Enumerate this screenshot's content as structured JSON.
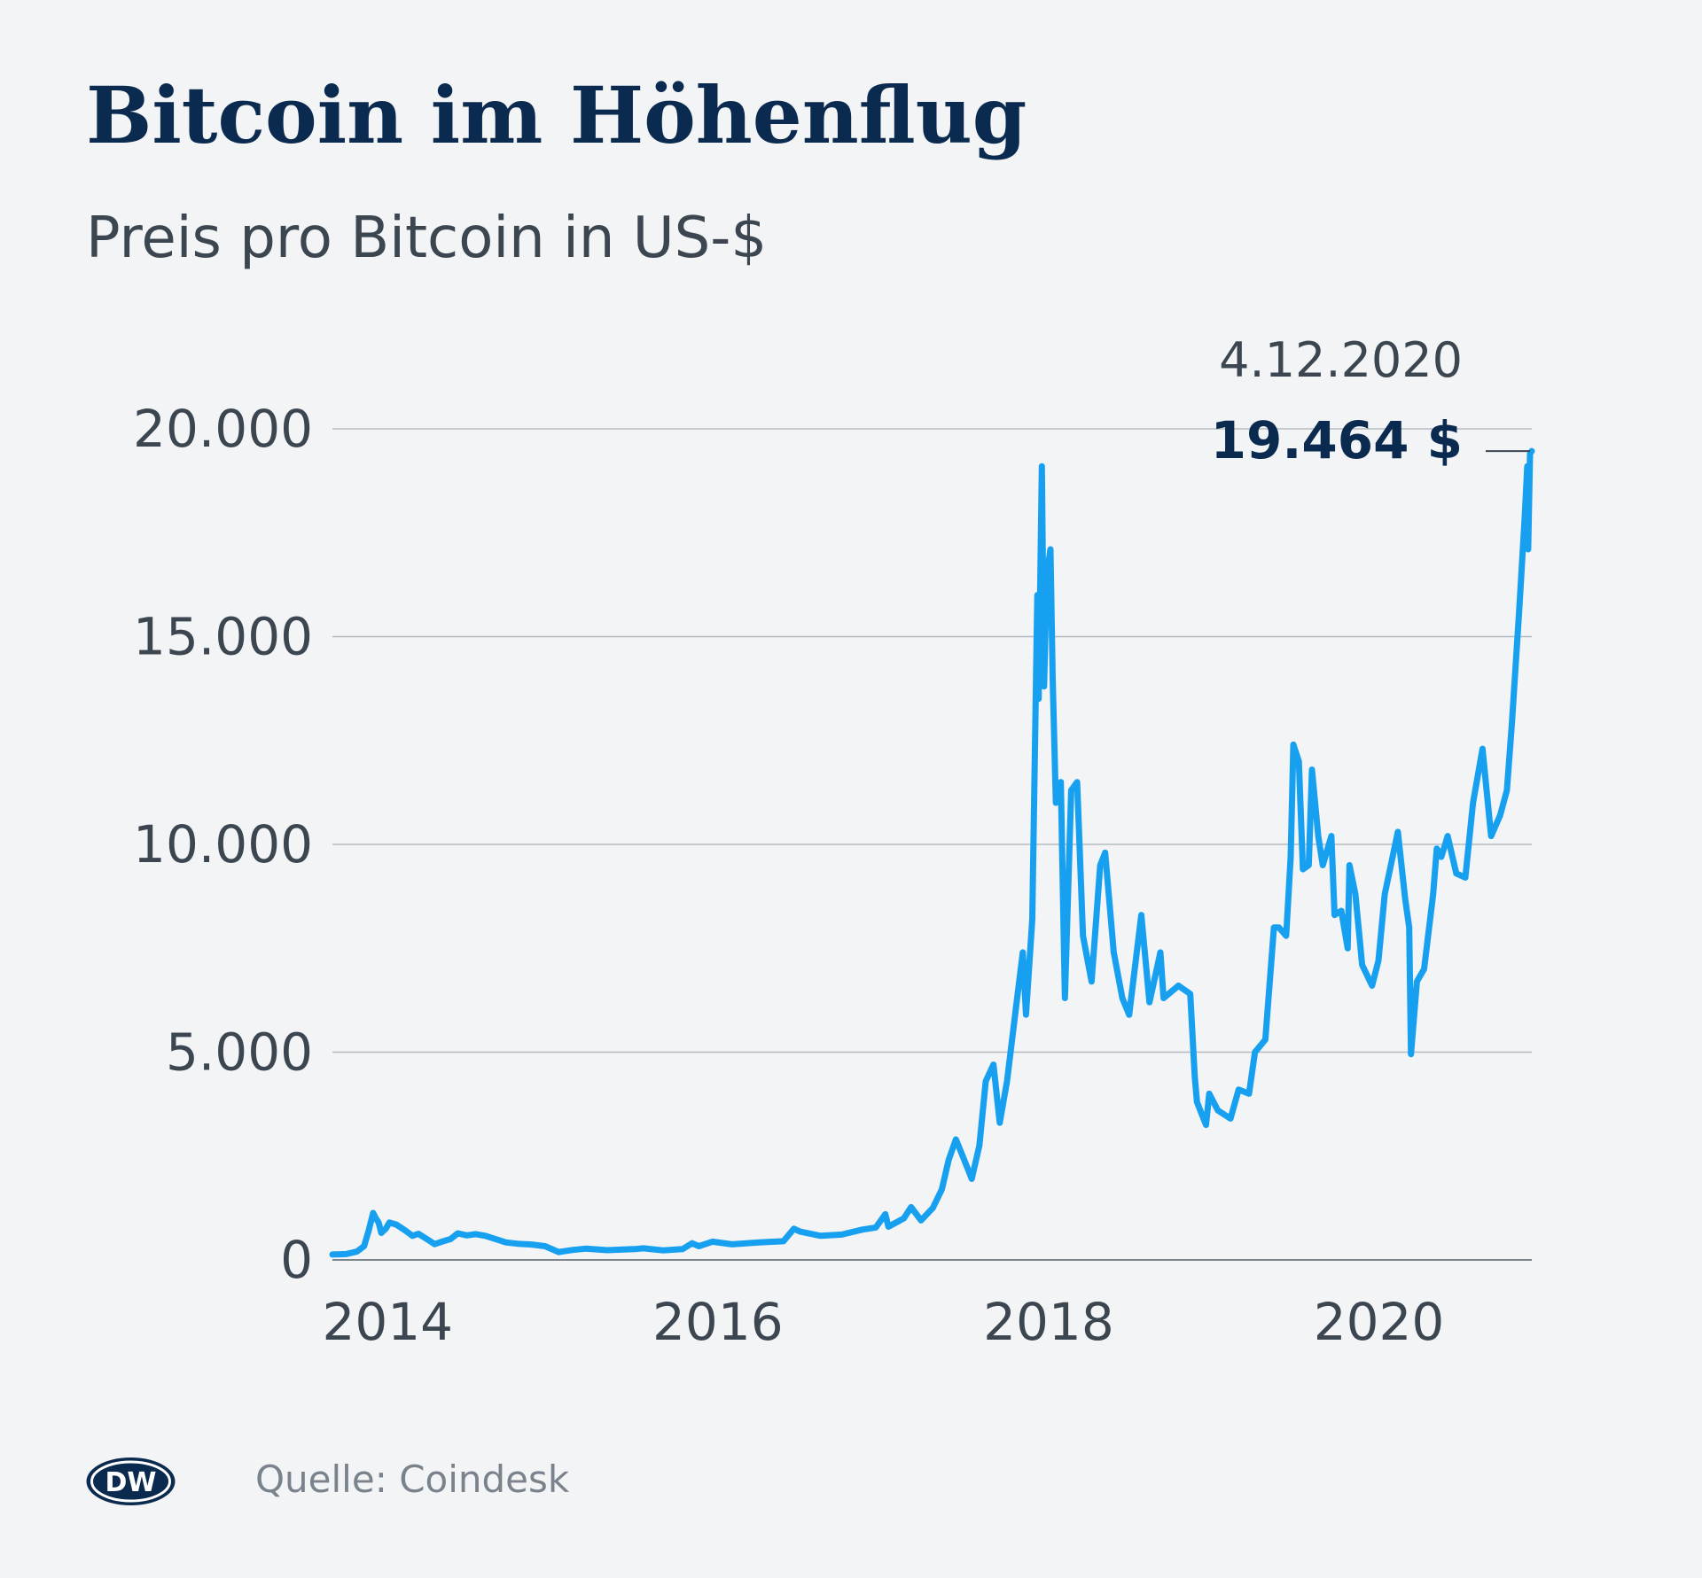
{
  "title": "Bitcoin im Höhenflug",
  "subtitle": "Preis pro Bitcoin in US-$",
  "source": "Quelle: Coindesk",
  "logo_text": "DW",
  "colors": {
    "line": "#18a0f0",
    "title": "#0b2a4f",
    "text": "#3c4650",
    "grid": "#9aa1a8"
  },
  "chart_data": {
    "type": "line",
    "title": "Bitcoin im Höhenflug",
    "subtitle": "Preis pro Bitcoin in US-$",
    "xlabel": "",
    "ylabel": "",
    "ylim": [
      0,
      20000
    ],
    "xlim": [
      "2013-09-01",
      "2020-12-04"
    ],
    "yticks": [
      0,
      5000,
      10000,
      15000,
      20000
    ],
    "ytick_labels": [
      "0",
      "5.000",
      "10.000",
      "15.000",
      "20.000"
    ],
    "xticks": [
      "2014-01-01",
      "2016-01-01",
      "2018-01-01",
      "2020-01-01"
    ],
    "xtick_labels": [
      "2014",
      "2016",
      "2018",
      "2020"
    ],
    "grid": true,
    "annotation": {
      "date_label": "4.12.2020",
      "value_label": "19.464 $",
      "x": "2020-12-04",
      "y": 19464
    },
    "series": [
      {
        "values": [
          [
            "2013-09-01",
            130
          ],
          [
            "2013-10-01",
            140
          ],
          [
            "2013-10-25",
            200
          ],
          [
            "2013-11-10",
            330
          ],
          [
            "2013-11-20",
            700
          ],
          [
            "2013-11-30",
            1130
          ],
          [
            "2013-12-06",
            1000
          ],
          [
            "2013-12-12",
            900
          ],
          [
            "2013-12-18",
            650
          ],
          [
            "2013-12-28",
            750
          ],
          [
            "2014-01-05",
            900
          ],
          [
            "2014-01-20",
            850
          ],
          [
            "2014-02-10",
            700
          ],
          [
            "2014-02-25",
            580
          ],
          [
            "2014-03-10",
            630
          ],
          [
            "2014-04-01",
            480
          ],
          [
            "2014-04-15",
            380
          ],
          [
            "2014-05-01",
            440
          ],
          [
            "2014-05-20",
            500
          ],
          [
            "2014-06-05",
            640
          ],
          [
            "2014-06-25",
            590
          ],
          [
            "2014-07-15",
            620
          ],
          [
            "2014-08-05",
            580
          ],
          [
            "2014-08-25",
            510
          ],
          [
            "2014-09-20",
            420
          ],
          [
            "2014-10-15",
            390
          ],
          [
            "2014-11-15",
            370
          ],
          [
            "2014-12-15",
            330
          ],
          [
            "2015-01-14",
            190
          ],
          [
            "2015-02-15",
            240
          ],
          [
            "2015-03-15",
            270
          ],
          [
            "2015-05-01",
            235
          ],
          [
            "2015-07-01",
            260
          ],
          [
            "2015-07-20",
            280
          ],
          [
            "2015-09-01",
            230
          ],
          [
            "2015-10-15",
            260
          ],
          [
            "2015-11-05",
            400
          ],
          [
            "2015-11-20",
            330
          ],
          [
            "2015-12-20",
            440
          ],
          [
            "2016-02-01",
            375
          ],
          [
            "2016-04-01",
            420
          ],
          [
            "2016-05-25",
            450
          ],
          [
            "2016-06-17",
            750
          ],
          [
            "2016-07-01",
            680
          ],
          [
            "2016-08-15",
            580
          ],
          [
            "2016-10-01",
            610
          ],
          [
            "2016-11-15",
            730
          ],
          [
            "2016-12-15",
            780
          ],
          [
            "2017-01-05",
            1100
          ],
          [
            "2017-01-12",
            800
          ],
          [
            "2017-02-15",
            1000
          ],
          [
            "2017-03-03",
            1270
          ],
          [
            "2017-03-25",
            950
          ],
          [
            "2017-04-20",
            1250
          ],
          [
            "2017-05-10",
            1700
          ],
          [
            "2017-05-25",
            2400
          ],
          [
            "2017-06-10",
            2900
          ],
          [
            "2017-06-25",
            2500
          ],
          [
            "2017-07-15",
            1950
          ],
          [
            "2017-08-01",
            2750
          ],
          [
            "2017-08-15",
            4300
          ],
          [
            "2017-09-01",
            4700
          ],
          [
            "2017-09-15",
            3300
          ],
          [
            "2017-10-01",
            4300
          ],
          [
            "2017-10-20",
            6000
          ],
          [
            "2017-11-05",
            7400
          ],
          [
            "2017-11-12",
            5900
          ],
          [
            "2017-11-26",
            8200
          ],
          [
            "2017-12-07",
            16000
          ],
          [
            "2017-12-10",
            13500
          ],
          [
            "2017-12-17",
            19100
          ],
          [
            "2017-12-22",
            13800
          ],
          [
            "2017-12-28",
            16500
          ],
          [
            "2018-01-05",
            17100
          ],
          [
            "2018-01-10",
            14000
          ],
          [
            "2018-01-17",
            11000
          ],
          [
            "2018-01-28",
            11500
          ],
          [
            "2018-02-06",
            6300
          ],
          [
            "2018-02-20",
            11300
          ],
          [
            "2018-03-05",
            11500
          ],
          [
            "2018-03-18",
            7800
          ],
          [
            "2018-04-06",
            6700
          ],
          [
            "2018-04-25",
            9500
          ],
          [
            "2018-05-06",
            9800
          ],
          [
            "2018-05-25",
            7400
          ],
          [
            "2018-06-13",
            6300
          ],
          [
            "2018-06-28",
            5900
          ],
          [
            "2018-07-25",
            8300
          ],
          [
            "2018-08-12",
            6200
          ],
          [
            "2018-09-05",
            7400
          ],
          [
            "2018-09-12",
            6300
          ],
          [
            "2018-10-15",
            6600
          ],
          [
            "2018-11-10",
            6400
          ],
          [
            "2018-11-20",
            4400
          ],
          [
            "2018-11-25",
            3800
          ],
          [
            "2018-12-15",
            3250
          ],
          [
            "2018-12-22",
            4000
          ],
          [
            "2019-01-10",
            3600
          ],
          [
            "2019-02-07",
            3400
          ],
          [
            "2019-02-25",
            4100
          ],
          [
            "2019-03-20",
            4000
          ],
          [
            "2019-04-02",
            5000
          ],
          [
            "2019-04-25",
            5300
          ],
          [
            "2019-05-14",
            8000
          ],
          [
            "2019-05-25",
            8000
          ],
          [
            "2019-06-10",
            7800
          ],
          [
            "2019-06-20",
            9700
          ],
          [
            "2019-06-26",
            12400
          ],
          [
            "2019-07-08",
            12000
          ],
          [
            "2019-07-17",
            9400
          ],
          [
            "2019-07-30",
            9500
          ],
          [
            "2019-08-06",
            11800
          ],
          [
            "2019-08-20",
            10200
          ],
          [
            "2019-08-30",
            9500
          ],
          [
            "2019-09-18",
            10200
          ],
          [
            "2019-09-25",
            8300
          ],
          [
            "2019-10-10",
            8400
          ],
          [
            "2019-10-24",
            7500
          ],
          [
            "2019-10-28",
            9500
          ],
          [
            "2019-11-10",
            8800
          ],
          [
            "2019-11-25",
            7100
          ],
          [
            "2019-12-17",
            6600
          ],
          [
            "2019-12-31",
            7200
          ],
          [
            "2020-01-14",
            8800
          ],
          [
            "2020-02-12",
            10300
          ],
          [
            "2020-02-28",
            8700
          ],
          [
            "2020-03-08",
            8000
          ],
          [
            "2020-03-12",
            4950
          ],
          [
            "2020-03-25",
            6700
          ],
          [
            "2020-04-10",
            7000
          ],
          [
            "2020-04-30",
            8800
          ],
          [
            "2020-05-08",
            9900
          ],
          [
            "2020-05-18",
            9700
          ],
          [
            "2020-06-01",
            10200
          ],
          [
            "2020-06-20",
            9300
          ],
          [
            "2020-07-10",
            9200
          ],
          [
            "2020-07-27",
            11000
          ],
          [
            "2020-08-17",
            12300
          ],
          [
            "2020-09-05",
            10200
          ],
          [
            "2020-09-25",
            10700
          ],
          [
            "2020-10-10",
            11300
          ],
          [
            "2020-10-21",
            12900
          ],
          [
            "2020-11-06",
            15600
          ],
          [
            "2020-11-18",
            17800
          ],
          [
            "2020-11-24",
            19100
          ],
          [
            "2020-11-26",
            17100
          ],
          [
            "2020-11-30",
            19400
          ],
          [
            "2020-12-04",
            19464
          ]
        ]
      }
    ]
  }
}
